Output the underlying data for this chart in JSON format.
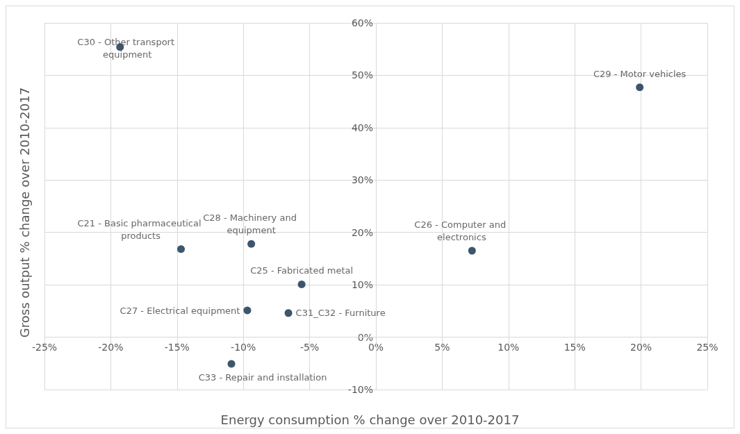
{
  "chart_data": {
    "type": "scatter",
    "xlabel": "Energy consumption % change over 2010-2017",
    "ylabel": "Gross output % change over 2010-2017",
    "series": [
      {
        "color": "#0e2a4a",
        "x": [
          -19.3,
          19.9,
          -14.7,
          -9.4,
          7.25,
          -5.6,
          -9.7,
          -6.6,
          -10.9
        ],
        "values": [
          55.4,
          47.7,
          16.8,
          17.8,
          16.5,
          10.1,
          5.1,
          4.6,
          -5.1
        ]
      }
    ],
    "annotations": [
      {
        "text": "C30 - Other transport equipment",
        "x": -19.3,
        "y": 55.4
      },
      {
        "text": "C29 - Motor vehicles",
        "x": 19.9,
        "y": 47.7
      },
      {
        "text": "C21 - Basic pharmaceutical products",
        "x": -14.7,
        "y": 16.8
      },
      {
        "text": "C28 - Machinery and equipment",
        "x": -9.4,
        "y": 17.8
      },
      {
        "text": "C26 - Computer and electronics",
        "x": 7.25,
        "y": 16.5
      },
      {
        "text": "C25 - Fabricated metal",
        "x": -5.6,
        "y": 10.1
      },
      {
        "text": "C27 - Electrical equipment",
        "x": -9.7,
        "y": 5.1
      },
      {
        "text": "C31_C32 - Furniture",
        "x": -6.6,
        "y": 4.6
      },
      {
        "text": "C33 - Repair and installation",
        "x": -10.9,
        "y": -5.1
      }
    ],
    "xlim": [
      -25,
      25
    ],
    "xticks": [
      {
        "value": -25,
        "label": "-25%"
      },
      {
        "value": -20,
        "label": "-20%"
      },
      {
        "value": -15,
        "label": "-15%"
      },
      {
        "value": -10,
        "label": "-10%"
      },
      {
        "value": -5,
        "label": "-5%"
      },
      {
        "value": 0,
        "label": "0%"
      },
      {
        "value": 5,
        "label": "5%"
      },
      {
        "value": 10,
        "label": "10%"
      },
      {
        "value": 15,
        "label": "15%"
      },
      {
        "value": 20,
        "label": "20%"
      },
      {
        "value": 25,
        "label": "25%"
      }
    ],
    "ylim": [
      -10,
      60
    ],
    "yticks": [
      {
        "value": -10,
        "label": "-10%"
      },
      {
        "value": 0,
        "label": "0%"
      },
      {
        "value": 10,
        "label": "10%"
      },
      {
        "value": 20,
        "label": "20%"
      },
      {
        "value": 30,
        "label": "30%"
      },
      {
        "value": 40,
        "label": "40%"
      },
      {
        "value": 50,
        "label": "50%"
      },
      {
        "value": 60,
        "label": "60%"
      }
    ],
    "grid": true,
    "marker": "circle"
  }
}
